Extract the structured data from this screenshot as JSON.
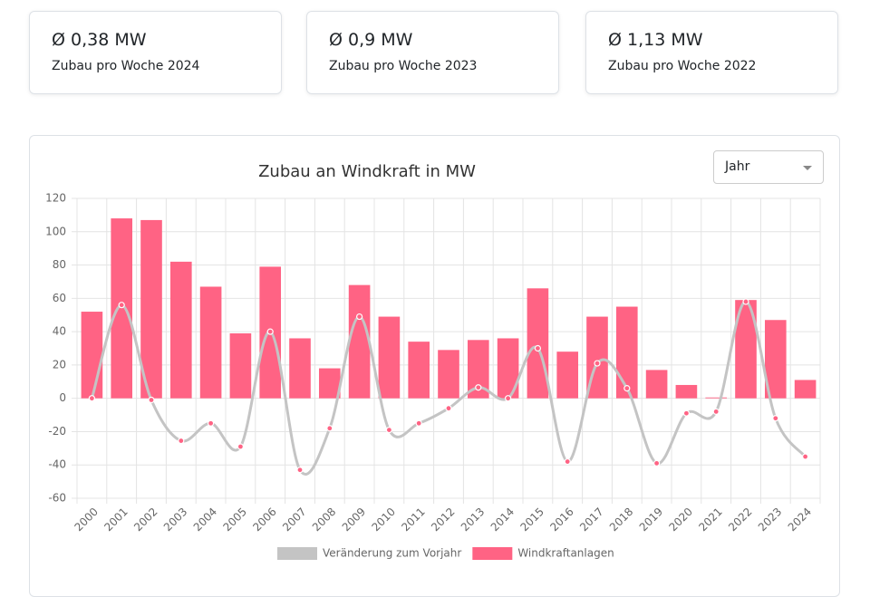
{
  "cards": [
    {
      "value": "Ø 0,38 MW",
      "label": "Zubau pro Woche 2024"
    },
    {
      "value": "Ø 0,9 MW",
      "label": "Zubau pro Woche 2023"
    },
    {
      "value": "Ø 1,13 MW",
      "label": "Zubau pro Woche 2022"
    }
  ],
  "dropdown": "Jahr",
  "chart_data": {
    "type": "bar",
    "title": "Zubau an Windkraft in MW",
    "categories": [
      "2000",
      "2001",
      "2002",
      "2003",
      "2004",
      "2005",
      "2006",
      "2007",
      "2008",
      "2009",
      "2010",
      "2011",
      "2012",
      "2013",
      "2014",
      "2015",
      "2016",
      "2017",
      "2018",
      "2019",
      "2020",
      "2021",
      "2022",
      "2023",
      "2024"
    ],
    "series": [
      {
        "name": "Veränderung zum Vorjahr",
        "type": "line",
        "color": "#c4c4c4",
        "values": [
          0,
          56,
          -1,
          -25.5,
          -15,
          -29,
          40,
          -43,
          -18,
          49,
          -19,
          -15,
          -6,
          6.5,
          0,
          30,
          -38,
          21,
          6,
          -39,
          -9,
          -8,
          58,
          -12,
          -35
        ]
      },
      {
        "name": "Windkraftanlagen",
        "type": "bar",
        "color": "#ff6384",
        "values": [
          52,
          108,
          107,
          82,
          67,
          39,
          79,
          36,
          18,
          68,
          49,
          34,
          29,
          35,
          36,
          66,
          28,
          49,
          55,
          17,
          8,
          0.5,
          59,
          47,
          11
        ]
      }
    ],
    "ylim": [
      -60,
      120
    ],
    "yticks": [
      -60,
      -40,
      -20,
      0,
      20,
      40,
      60,
      80,
      100,
      120
    ],
    "grid": true
  }
}
